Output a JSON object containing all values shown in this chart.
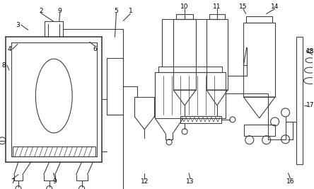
{
  "bg_color": "#ffffff",
  "line_color": "#404040",
  "lw": 0.8,
  "lw2": 1.2,
  "figsize": [
    4.44,
    2.67
  ],
  "dpi": 100,
  "label_fontsize": 6.5
}
